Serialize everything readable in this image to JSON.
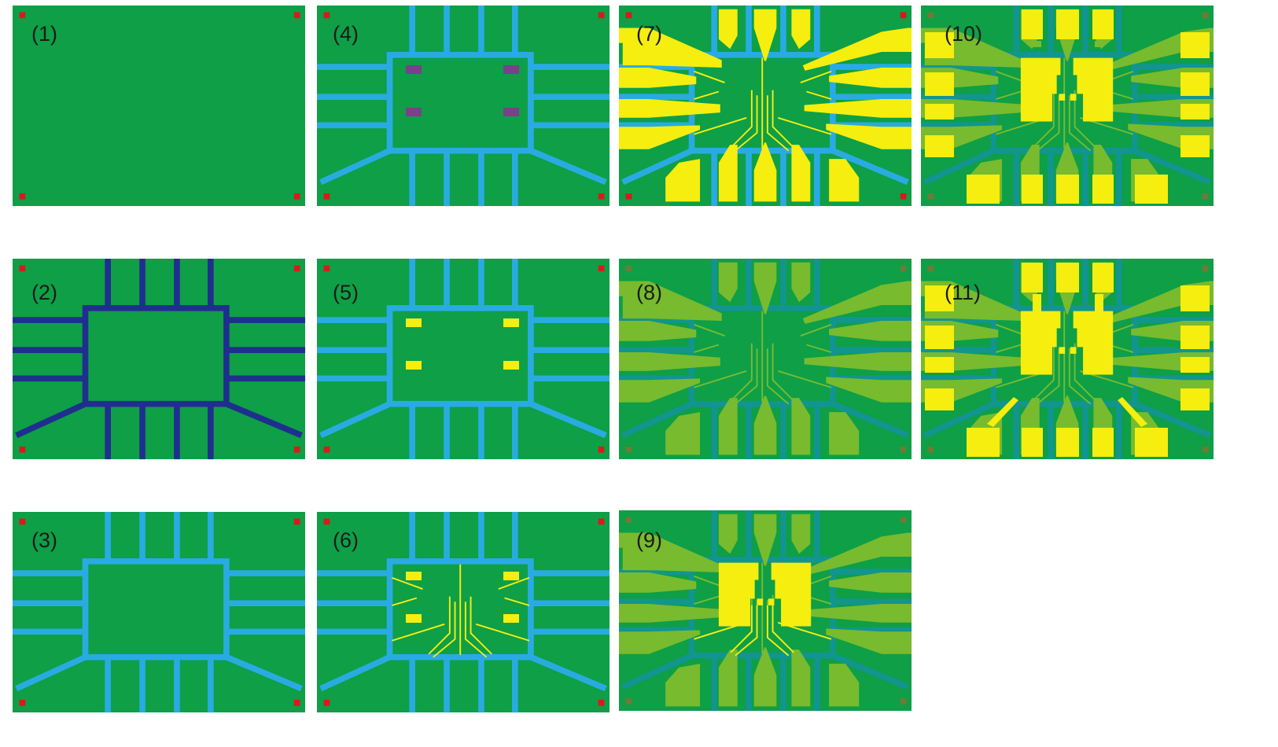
{
  "colors": {
    "background": "#ffffff",
    "substrate": "#0e9f47",
    "marker": "#e0161b",
    "marker_faded": "#6f7a37",
    "gate_dark": "#1f2f8e",
    "gate_light": "#29abe2",
    "gate_muted": "#12958f",
    "resist": "#7c3f8a",
    "metal": "#f5ee0e",
    "metal_faded": "#78bb2e"
  },
  "panels": [
    {
      "label": "(1)",
      "stage": "substrate"
    },
    {
      "label": "(2)",
      "stage": "gate-dark"
    },
    {
      "label": "(3)",
      "stage": "gate-light"
    },
    {
      "label": "(4)",
      "stage": "resist-windows"
    },
    {
      "label": "(5)",
      "stage": "metal-windows"
    },
    {
      "label": "(6)",
      "stage": "fine-leads"
    },
    {
      "label": "(7)",
      "stage": "contact-pads"
    },
    {
      "label": "(8)",
      "stage": "pads-faded"
    },
    {
      "label": "(9)",
      "stage": "central-blocks"
    },
    {
      "label": "(10)",
      "stage": "outer-pads"
    },
    {
      "label": "(11)",
      "stage": "connected-pads"
    }
  ]
}
